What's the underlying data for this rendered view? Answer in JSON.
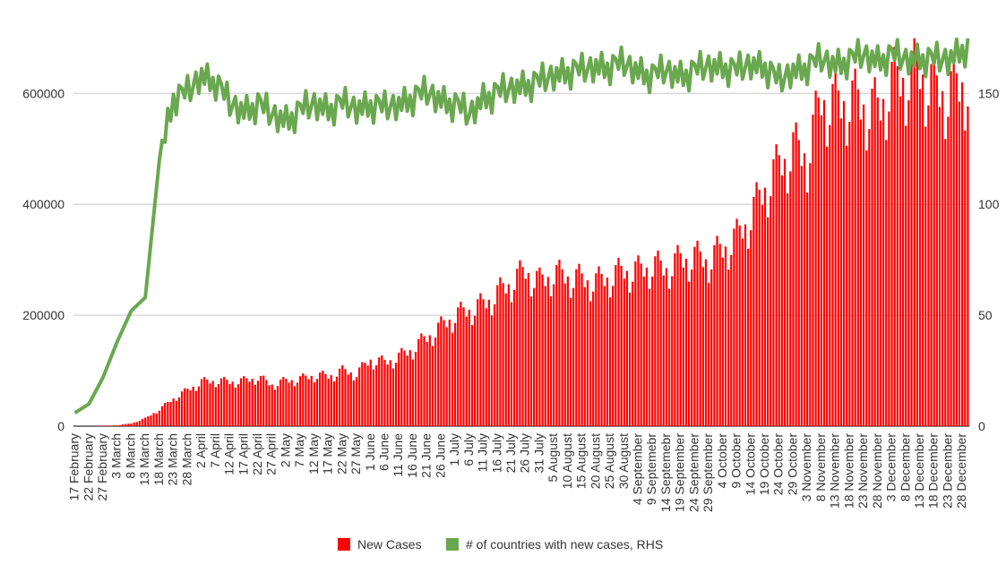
{
  "chart_data": {
    "type": "bar",
    "title": "",
    "xlabel": "",
    "ylabel": "",
    "y_left_ticks": [
      "0",
      "200000",
      "400000",
      "600000"
    ],
    "y_right_ticks": [
      "0",
      "50",
      "100",
      "150"
    ],
    "ylim_left": [
      0,
      720000
    ],
    "ylim_right": [
      0,
      180
    ],
    "grid": true,
    "legend_position": "bottom",
    "x_tick_labels": [
      "17 February",
      "22 February",
      "27 February",
      "3 March",
      "8 March",
      "13 March",
      "18 March",
      "23 March",
      "28 March",
      "2 April",
      "7 April",
      "12 April",
      "17 April",
      "22 April",
      "27 April",
      "2 May",
      "7 May",
      "12 May",
      "17 May",
      "22 May",
      "27 May",
      "1 June",
      "6 June",
      "11 June",
      "16 June",
      "21 June",
      "26 June",
      "1 July",
      "6 July",
      "11 July",
      "16 July",
      "21 July",
      "26 July",
      "31 July",
      "5 August",
      "10 August",
      "15 August",
      "20 August",
      "25 August",
      "30 August",
      "4 September",
      "9 Septemebr",
      "14 Septemebr",
      "19 September",
      "24 September",
      "29 September",
      "4 October",
      "9 October",
      "14 October",
      "19 October",
      "24 October",
      "29 October",
      "3 November",
      "8 November",
      "13 November",
      "18 November",
      "23 November",
      "28 November",
      "3 December",
      "8 December",
      "13 December",
      "18 December",
      "23 December",
      "28 December"
    ],
    "series": [
      {
        "name": "New Cases",
        "axis": "left",
        "kind": "bar",
        "color": "#ff0000",
        "weekly_values": [
          0,
          0,
          500,
          1500,
          5000,
          14000,
          30000,
          50000,
          65000,
          80000,
          82000,
          80000,
          82000,
          88000,
          75000,
          82000,
          85000,
          92000,
          90000,
          100000,
          95000,
          120000,
          115000,
          125000,
          140000,
          160000,
          180000,
          200000,
          210000,
          220000,
          240000,
          260000,
          280000,
          260000,
          275000,
          270000,
          265000,
          260000,
          270000,
          280000,
          280000,
          290000,
          285000,
          300000,
          305000,
          300000,
          320000,
          340000,
          380000,
          430000,
          470000,
          500000,
          490000,
          590000,
          580000,
          590000,
          580000,
          570000,
          620000,
          630000,
          640000,
          610000,
          600000,
          620000
        ]
      },
      {
        "name": "# of countries with new cases, RHS",
        "axis": "right",
        "kind": "line",
        "color": "#6aa84f",
        "weekly_values": [
          6,
          10,
          22,
          38,
          52,
          58,
          120,
          148,
          150,
          158,
          155,
          145,
          142,
          145,
          140,
          138,
          142,
          145,
          143,
          145,
          143,
          145,
          143,
          145,
          148,
          150,
          147,
          145,
          140,
          148,
          150,
          152,
          154,
          155,
          158,
          160,
          160,
          162,
          162,
          163,
          160,
          158,
          160,
          158,
          160,
          162,
          162,
          160,
          163,
          162,
          155,
          160,
          162,
          165,
          163,
          165,
          167,
          165,
          167,
          165,
          166,
          165,
          165,
          170
        ]
      }
    ]
  }
}
